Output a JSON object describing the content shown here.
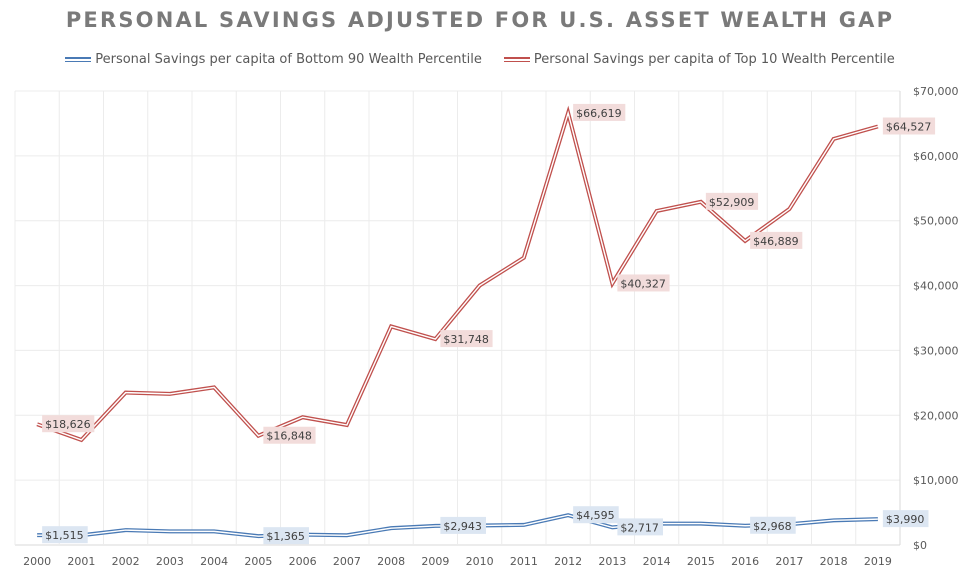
{
  "chart_data": {
    "type": "line",
    "title": "PERSONAL SAVINGS ADJUSTED FOR U.S. ASSET WEALTH GAP",
    "xlabel": "",
    "ylabel": "",
    "categories": [
      "2000",
      "2001",
      "2002",
      "2003",
      "2004",
      "2005",
      "2006",
      "2007",
      "2008",
      "2009",
      "2010",
      "2011",
      "2012",
      "2013",
      "2014",
      "2015",
      "2016",
      "2017",
      "2018",
      "2019"
    ],
    "ylim": [
      0,
      70000
    ],
    "yticks": [
      0,
      10000,
      20000,
      30000,
      40000,
      50000,
      60000,
      70000
    ],
    "ytick_labels": [
      "$0",
      "$10,000",
      "$20,000",
      "$30,000",
      "$40,000",
      "$50,000",
      "$60,000",
      "$70,000"
    ],
    "y_axis_side": "right",
    "grid": true,
    "legend_position": "top",
    "series": [
      {
        "name": "Personal Savings per capita of Bottom 90 Wealth Percentile",
        "color": "#4a7ab5",
        "label_bg": "#dce6f2",
        "values": [
          1515,
          1500,
          2300,
          2100,
          2100,
          1365,
          1600,
          1500,
          2600,
          2943,
          3000,
          3100,
          4595,
          2717,
          3300,
          3300,
          2968,
          3200,
          3800,
          3990
        ],
        "data_labels": {
          "0": "$1,515",
          "5": "$1,365",
          "9": "$2,943",
          "12": "$4,595",
          "13": "$2,717",
          "16": "$2,968",
          "19": "$3,990"
        }
      },
      {
        "name": "Personal Savings per capita of Top 10 Wealth Percentile",
        "color": "#c0504d",
        "label_bg": "#f2dcdb",
        "values": [
          18626,
          16200,
          23500,
          23300,
          24300,
          16848,
          19700,
          18500,
          33700,
          31748,
          40000,
          44300,
          66619,
          40327,
          51500,
          52909,
          46889,
          51800,
          62600,
          64527
        ],
        "data_labels": {
          "0": "$18,626",
          "5": "$16,848",
          "9": "$31,748",
          "12": "$66,619",
          "13": "$40,327",
          "15": "$52,909",
          "16": "$46,889",
          "19": "$64,527"
        }
      }
    ]
  }
}
